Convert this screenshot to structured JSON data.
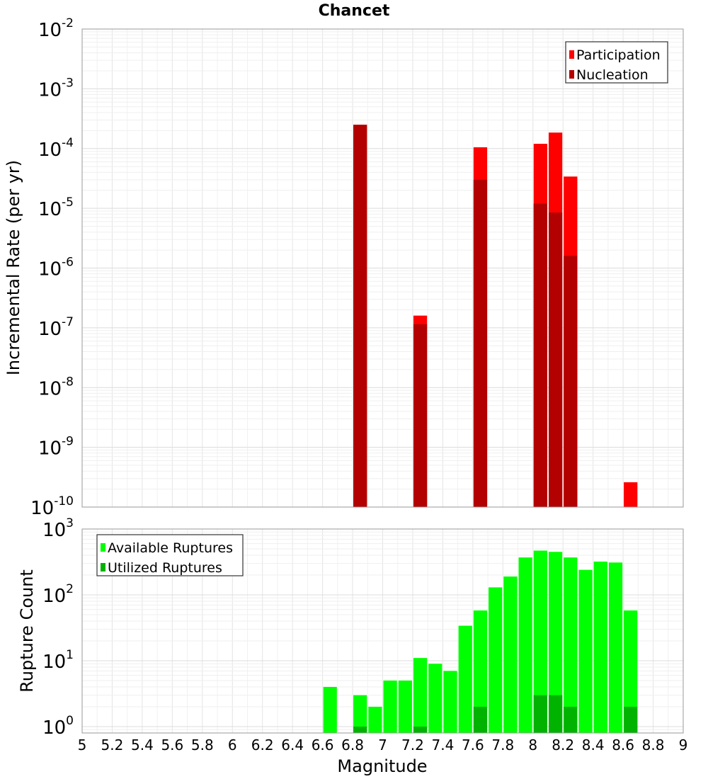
{
  "chart_data": [
    {
      "type": "bar",
      "title": "Chancet",
      "xlabel": "",
      "ylabel": "Incremental Rate (per yr)",
      "y_scale": "log",
      "ylim": [
        1e-10,
        0.01
      ],
      "y_ticks": [
        {
          "base": "10",
          "exp": "-10"
        },
        {
          "base": "10",
          "exp": "-9"
        },
        {
          "base": "10",
          "exp": "-8"
        },
        {
          "base": "10",
          "exp": "-7"
        },
        {
          "base": "10",
          "exp": "-6"
        },
        {
          "base": "10",
          "exp": "-5"
        },
        {
          "base": "10",
          "exp": "-4"
        },
        {
          "base": "10",
          "exp": "-3"
        },
        {
          "base": "10",
          "exp": "-2"
        }
      ],
      "xlim": [
        5,
        9
      ],
      "grid": true,
      "legend_position": "top-right",
      "series": [
        {
          "name": "Participation",
          "color": "#ff0000",
          "x": [
            6.85,
            7.25,
            7.65,
            8.05,
            8.15,
            8.25,
            8.65
          ],
          "values": [
            0.00025,
            1.6e-07,
            0.000105,
            0.00012,
            0.000185,
            3.4e-05,
            2.6e-10
          ]
        },
        {
          "name": "Nucleation",
          "color": "#b30000",
          "x": [
            6.85,
            7.25,
            7.65,
            8.05,
            8.15,
            8.25
          ],
          "values": [
            0.00025,
            1.15e-07,
            3e-05,
            1.2e-05,
            8.5e-06,
            1.6e-06
          ]
        }
      ]
    },
    {
      "type": "bar",
      "title": "",
      "xlabel": "Magnitude",
      "ylabel": "Rupture Count",
      "y_scale": "log",
      "ylim": [
        0.8,
        1000
      ],
      "y_ticks": [
        {
          "value": 1,
          "base": "10",
          "exp": "0"
        },
        {
          "value": 10,
          "base": "10",
          "exp": "1"
        },
        {
          "value": 100,
          "base": "10",
          "exp": "2"
        },
        {
          "value": 1000,
          "base": "10",
          "exp": "3"
        }
      ],
      "xlim": [
        5,
        9
      ],
      "x_ticks": [
        "5",
        "5.2",
        "5.4",
        "5.6",
        "5.8",
        "6",
        "6.2",
        "6.4",
        "6.6",
        "6.8",
        "7",
        "7.2",
        "7.4",
        "7.6",
        "7.8",
        "8",
        "8.2",
        "8.4",
        "8.6",
        "8.8",
        "9"
      ],
      "grid": true,
      "legend_position": "top-left",
      "series": [
        {
          "name": "Available Ruptures",
          "color": "#00ff00",
          "x": [
            6.65,
            6.85,
            6.95,
            7.05,
            7.15,
            7.25,
            7.35,
            7.45,
            7.55,
            7.65,
            7.75,
            7.85,
            7.95,
            8.05,
            8.15,
            8.25,
            8.35,
            8.45,
            8.55,
            8.65
          ],
          "values": [
            4,
            3,
            2,
            5,
            5,
            11,
            9,
            7,
            34,
            58,
            130,
            190,
            370,
            470,
            450,
            370,
            240,
            320,
            310,
            58
          ]
        },
        {
          "name": "Utilized Ruptures",
          "color": "#00b300",
          "x": [
            6.85,
            7.25,
            7.65,
            8.05,
            8.15,
            8.25,
            8.65
          ],
          "values": [
            1,
            1,
            2,
            3,
            3,
            2,
            2
          ]
        }
      ]
    }
  ]
}
